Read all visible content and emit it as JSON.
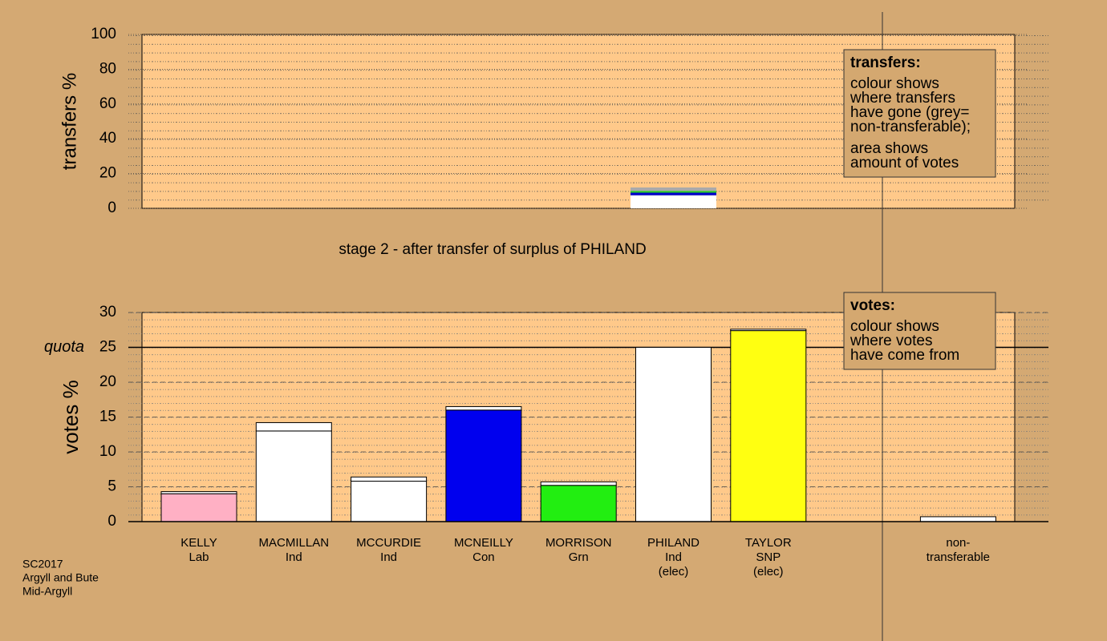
{
  "chart_data": [
    {
      "type": "stacked_bar",
      "ylabel": "transfers %",
      "ylim": [
        0,
        100
      ],
      "yticks": [
        0,
        20,
        40,
        60,
        80,
        100
      ],
      "series": [
        {
          "color": "#ffffff",
          "values": [
            null,
            null,
            null,
            null,
            null,
            7.5,
            null
          ]
        },
        {
          "color": "#0000cc",
          "values": [
            null,
            null,
            null,
            null,
            null,
            1.5,
            null
          ]
        },
        {
          "color": "#22cc22",
          "values": [
            null,
            null,
            null,
            null,
            null,
            1,
            null
          ]
        },
        {
          "color": "#aaaaaa",
          "values": [
            null,
            null,
            null,
            null,
            null,
            2,
            null
          ]
        }
      ],
      "legend": {
        "title": "transfers:",
        "paragraphs": [
          [
            "colour shows",
            "where transfers",
            "have gone (grey=",
            "non-transferable);"
          ],
          [
            "area shows",
            "amount of votes"
          ]
        ]
      },
      "caption": "stage 2 - after transfer of surplus of PHILAND"
    },
    {
      "type": "stacked_bar",
      "ylabel": "votes %",
      "ylim": [
        0,
        30
      ],
      "yticks": [
        0,
        5,
        10,
        15,
        20,
        25,
        30
      ],
      "quota": {
        "label": "quota",
        "value": 25
      },
      "categories": [
        "KELLY",
        "MACMILLAN",
        "MCCURDIE",
        "MCNEILLY",
        "MORRISON",
        "PHILAND",
        "TAYLOR"
      ],
      "parties": [
        "Lab",
        "Ind",
        "Ind",
        "Con",
        "Grn",
        "Ind",
        "SNP"
      ],
      "status": [
        null,
        null,
        null,
        null,
        null,
        "(elec)",
        "(elec)"
      ],
      "series": [
        {
          "colors": [
            "#ffb0c4",
            "#ffffff",
            "#ffffff",
            "#0000ee",
            "#22ee11",
            "#ffffff",
            "#ffff11"
          ],
          "values": [
            4,
            13,
            5.8,
            16,
            5.2,
            25,
            27.4
          ]
        },
        {
          "color": "#ffffff",
          "values": [
            0.3,
            1.2,
            0.6,
            0.5,
            0.5,
            null,
            0.2
          ]
        }
      ],
      "non_transferable": {
        "label": [
          "non-",
          "transferable"
        ],
        "value": 0.7,
        "color": "#ffffff"
      },
      "legend": {
        "title": "votes:",
        "paragraphs": [
          [
            "colour shows",
            "where votes",
            "have come from"
          ]
        ]
      }
    }
  ],
  "footer": [
    "SC2017",
    "Argyll and Bute",
    "Mid-Argyll"
  ]
}
